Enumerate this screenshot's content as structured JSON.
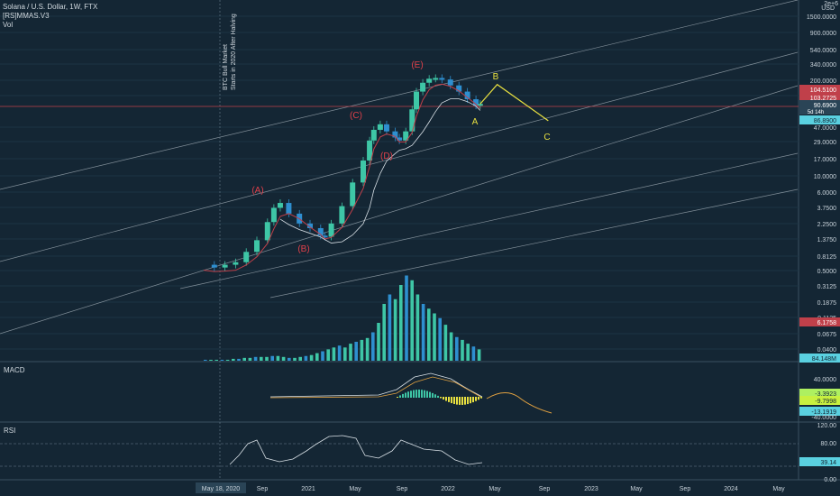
{
  "header": {
    "symbol_line": "Solana / U.S. Dollar, 1W, FTX",
    "indicator1": "[RS]MMAS.V3",
    "indicator2": "Vol"
  },
  "annotation": {
    "line1": "BTC Bull Market",
    "line2": "Starts in 2020 After Halving"
  },
  "panes": {
    "macd_label": "MACD",
    "rsi_label": "RSI"
  },
  "colors": {
    "background": "#142634",
    "price_line": "#c0404a",
    "bull": "#3ec6a6",
    "bear": "#2e8fd0",
    "wave": "#e8e040",
    "wave_label": "#e0404a",
    "channel": "#c8d2da"
  },
  "chart_data": {
    "type": "candlestick",
    "price_axis": {
      "unit_label_top": "2e+6",
      "unit": "USD",
      "scale": "log",
      "ticks": [
        "1500.0000",
        "900.0000",
        "540.0000",
        "340.0000",
        "200.0000",
        "120.0000",
        "47.0000",
        "29.0000",
        "17.0000",
        "10.0000",
        "6.0000",
        "3.7500",
        "2.2500",
        "1.3750",
        "0.8125",
        "0.5000",
        "0.3125",
        "0.1875",
        "0.1125",
        "0.0675",
        "0.0400"
      ],
      "badges": [
        {
          "text": "104.5100",
          "color": "#c0404a"
        },
        {
          "text": "103.2725",
          "color": "#c0404a"
        },
        {
          "text": "90.6900",
          "color": "#ffffff",
          "sub": "5d 14h"
        },
        {
          "text": "86.8900",
          "color": "#7fe0f0"
        },
        {
          "text": "6.1758",
          "color": "#c0404a"
        },
        {
          "text": "84.148M",
          "color": "#7fe0f0"
        }
      ]
    },
    "time_axis": [
      "May 18, 2020",
      "Sep",
      "2021",
      "May",
      "Sep",
      "2022",
      "May",
      "Sep",
      "2023",
      "May",
      "Sep",
      "2024",
      "May"
    ],
    "wave_labels": [
      "(A)",
      "(B)",
      "(C)",
      "(D)",
      "(E)",
      "A",
      "B",
      "C"
    ],
    "price_path": [
      [
        0.0,
        0.6
      ],
      [
        0.5,
        0.55
      ],
      [
        1,
        0.6
      ],
      [
        1.5,
        0.65
      ],
      [
        2,
        0.9
      ],
      [
        2.5,
        1.3
      ],
      [
        3,
        2.3
      ],
      [
        3.3,
        3.6
      ],
      [
        3.6,
        4.2
      ],
      [
        4,
        3.0
      ],
      [
        4.5,
        2.2
      ],
      [
        5,
        1.9
      ],
      [
        5.5,
        1.5
      ],
      [
        5.7,
        1.45
      ],
      [
        6,
        2.2
      ],
      [
        6.5,
        3.8
      ],
      [
        7,
        8
      ],
      [
        7.5,
        16
      ],
      [
        7.8,
        30
      ],
      [
        8,
        42
      ],
      [
        8.3,
        50
      ],
      [
        8.6,
        40
      ],
      [
        9,
        33
      ],
      [
        9.2,
        30
      ],
      [
        9.5,
        40
      ],
      [
        9.8,
        80
      ],
      [
        10,
        140
      ],
      [
        10.3,
        185
      ],
      [
        10.6,
        210
      ],
      [
        10.9,
        215
      ],
      [
        11.2,
        205
      ],
      [
        11.6,
        170
      ],
      [
        12,
        140
      ],
      [
        12.4,
        110
      ],
      [
        12.8,
        90
      ],
      [
        13.0,
        95
      ]
    ],
    "projection": [
      [
        13.0,
        95
      ],
      [
        13.8,
        175
      ],
      [
        16.2,
        56
      ]
    ],
    "volume": [
      1,
      1,
      1,
      1,
      1,
      2,
      2,
      3,
      3,
      4,
      4,
      4,
      5,
      5,
      4,
      3,
      3,
      4,
      5,
      6,
      8,
      10,
      12,
      14,
      16,
      14,
      18,
      20,
      22,
      24,
      30,
      40,
      60,
      70,
      65,
      80,
      90,
      85,
      70,
      60,
      55,
      50,
      45,
      38,
      30,
      25,
      22,
      18,
      15,
      12
    ],
    "macd": {
      "values": [
        "40.0000",
        "-3.3923",
        "-9.7998",
        "-13.1919",
        "-40.0000"
      ]
    },
    "rsi": {
      "values": [
        "120.00",
        "80.00",
        "39.14",
        "0.00"
      ]
    }
  }
}
